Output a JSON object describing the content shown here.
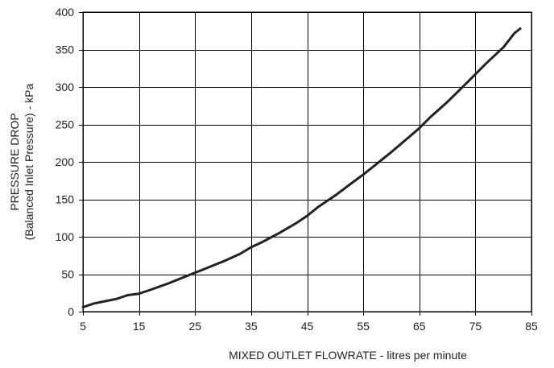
{
  "chart_data": {
    "type": "line",
    "title": "",
    "xlabel": "MIXED OUTLET FLOWRATE - litres per minute",
    "ylabel_line1": "PRESSURE DROP",
    "ylabel_line2": "(Balanced Inlet Pressure) - kPa",
    "xlim": [
      5,
      85
    ],
    "ylim": [
      0,
      400
    ],
    "xticks": [
      5,
      15,
      25,
      35,
      45,
      55,
      65,
      75,
      85
    ],
    "yticks": [
      0,
      50,
      100,
      150,
      200,
      250,
      300,
      350,
      400
    ],
    "grid": true,
    "line_color": "#222222",
    "series": [
      {
        "values": [
          {
            "x": 5,
            "y": 6
          },
          {
            "x": 7,
            "y": 11
          },
          {
            "x": 9,
            "y": 14
          },
          {
            "x": 11,
            "y": 17
          },
          {
            "x": 13,
            "y": 22
          },
          {
            "x": 15,
            "y": 24
          },
          {
            "x": 17,
            "y": 29
          },
          {
            "x": 20,
            "y": 37
          },
          {
            "x": 23,
            "y": 46
          },
          {
            "x": 25,
            "y": 52
          },
          {
            "x": 27,
            "y": 58
          },
          {
            "x": 30,
            "y": 67
          },
          {
            "x": 33,
            "y": 77
          },
          {
            "x": 35,
            "y": 86
          },
          {
            "x": 37,
            "y": 93
          },
          {
            "x": 40,
            "y": 105
          },
          {
            "x": 43,
            "y": 118
          },
          {
            "x": 45,
            "y": 128
          },
          {
            "x": 47,
            "y": 140
          },
          {
            "x": 50,
            "y": 155
          },
          {
            "x": 53,
            "y": 172
          },
          {
            "x": 55,
            "y": 183
          },
          {
            "x": 57,
            "y": 195
          },
          {
            "x": 60,
            "y": 213
          },
          {
            "x": 63,
            "y": 232
          },
          {
            "x": 65,
            "y": 245
          },
          {
            "x": 67,
            "y": 260
          },
          {
            "x": 70,
            "y": 280
          },
          {
            "x": 73,
            "y": 302
          },
          {
            "x": 75,
            "y": 317
          },
          {
            "x": 77,
            "y": 332
          },
          {
            "x": 80,
            "y": 353
          },
          {
            "x": 82,
            "y": 372
          },
          {
            "x": 83,
            "y": 378
          }
        ]
      }
    ]
  }
}
